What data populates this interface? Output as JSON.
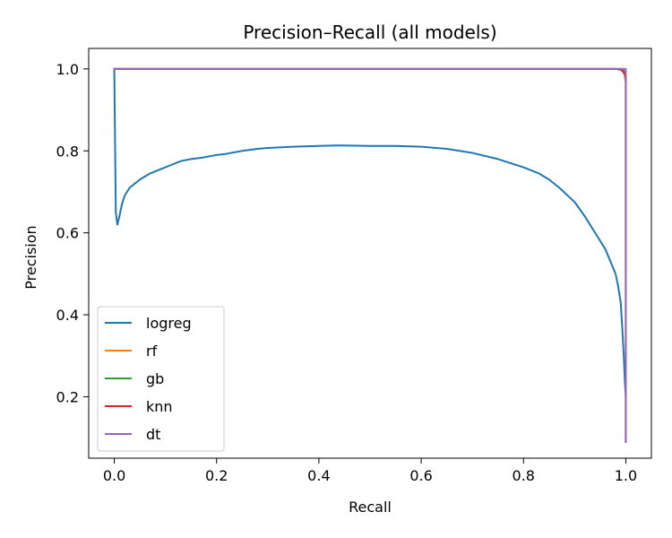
{
  "chart_data": {
    "type": "line",
    "title": "Precision–Recall (all models)",
    "xlabel": "Recall",
    "ylabel": "Precision",
    "xlim": [
      -0.05,
      1.05
    ],
    "ylim": [
      0.05,
      1.05
    ],
    "xticks": [
      0.0,
      0.2,
      0.4,
      0.6,
      0.8,
      1.0
    ],
    "xtick_labels": [
      "0.0",
      "0.2",
      "0.4",
      "0.6",
      "0.8",
      "1.0"
    ],
    "yticks": [
      0.2,
      0.4,
      0.6,
      0.8,
      1.0
    ],
    "ytick_labels": [
      "0.2",
      "0.4",
      "0.6",
      "0.8",
      "1.0"
    ],
    "grid": false,
    "legend_position": "lower-left",
    "series": [
      {
        "name": "logreg",
        "color": "#1f77b4",
        "x": [
          0.0,
          0.003,
          0.006,
          0.01,
          0.015,
          0.02,
          0.03,
          0.04,
          0.05,
          0.07,
          0.09,
          0.11,
          0.13,
          0.15,
          0.17,
          0.2,
          0.22,
          0.25,
          0.28,
          0.3,
          0.35,
          0.4,
          0.43,
          0.45,
          0.5,
          0.55,
          0.6,
          0.65,
          0.7,
          0.75,
          0.8,
          0.83,
          0.85,
          0.87,
          0.9,
          0.92,
          0.94,
          0.96,
          0.97,
          0.98,
          0.985,
          0.99,
          0.993,
          0.996,
          0.998,
          1.0
        ],
        "y": [
          1.0,
          0.65,
          0.62,
          0.64,
          0.67,
          0.69,
          0.71,
          0.72,
          0.73,
          0.745,
          0.755,
          0.765,
          0.775,
          0.78,
          0.783,
          0.79,
          0.793,
          0.8,
          0.805,
          0.807,
          0.81,
          0.812,
          0.813,
          0.813,
          0.812,
          0.812,
          0.81,
          0.805,
          0.795,
          0.78,
          0.76,
          0.745,
          0.73,
          0.71,
          0.675,
          0.64,
          0.6,
          0.56,
          0.53,
          0.5,
          0.47,
          0.43,
          0.37,
          0.3,
          0.24,
          0.2
        ]
      },
      {
        "name": "rf",
        "color": "#ff7f0e",
        "x": [
          0.0,
          0.5,
          0.99,
          0.996,
          0.999,
          1.0,
          1.0
        ],
        "y": [
          1.0,
          1.0,
          1.0,
          0.995,
          0.99,
          0.97,
          0.09
        ]
      },
      {
        "name": "gb",
        "color": "#2ca02c",
        "x": [
          0.0,
          0.5,
          0.99,
          0.996,
          0.999,
          1.0,
          1.0
        ],
        "y": [
          1.0,
          1.0,
          1.0,
          0.995,
          0.99,
          0.97,
          0.09
        ]
      },
      {
        "name": "knn",
        "color": "#d62728",
        "x": [
          0.0,
          0.5,
          0.98,
          0.99,
          0.995,
          0.998,
          1.0,
          1.0
        ],
        "y": [
          1.0,
          1.0,
          1.0,
          0.998,
          0.993,
          0.985,
          0.97,
          0.09
        ]
      },
      {
        "name": "dt",
        "color": "#9467bd",
        "x": [
          0.0,
          0.5,
          1.0,
          1.0
        ],
        "y": [
          1.0,
          1.0,
          1.0,
          0.09
        ]
      }
    ]
  }
}
